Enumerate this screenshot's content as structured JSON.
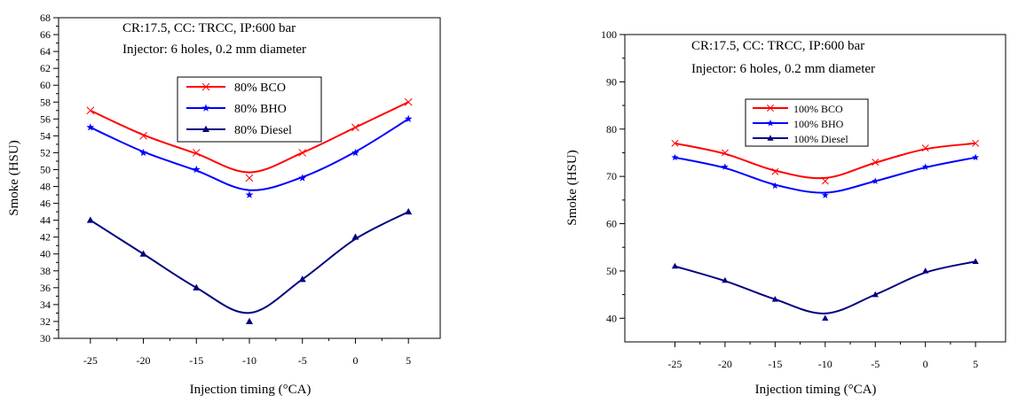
{
  "chart_data": [
    {
      "type": "line",
      "title": "",
      "annotation_lines": [
        "CR:17.5, CC: TRCC, IP:600 bar",
        "Injector: 6 holes, 0.2 mm diameter"
      ],
      "xlabel": "Injection timing (°CA)",
      "ylabel": "Smoke (HSU)",
      "x": [
        -25,
        -20,
        -15,
        -10,
        -5,
        0,
        5
      ],
      "xlim": [
        -28,
        8
      ],
      "ylim": [
        30,
        68
      ],
      "yticks": [
        30,
        32,
        34,
        36,
        38,
        40,
        42,
        44,
        46,
        48,
        50,
        52,
        54,
        56,
        58,
        60,
        62,
        64,
        66,
        68
      ],
      "xticks": [
        -25,
        -20,
        -15,
        -10,
        -5,
        0,
        5
      ],
      "legend_position": "upper-center",
      "series": [
        {
          "name": "80% BCO",
          "values": [
            57,
            54,
            52,
            49,
            52,
            55,
            58
          ],
          "color": "#ff0000",
          "marker": "x"
        },
        {
          "name": "80% BHO",
          "values": [
            55,
            52,
            50,
            47,
            49,
            52,
            56
          ],
          "color": "#0000ff",
          "marker": "star"
        },
        {
          "name": "80% Diesel",
          "values": [
            44,
            40,
            36,
            32,
            37,
            42,
            45
          ],
          "color": "#000080",
          "marker": "triangle"
        }
      ]
    },
    {
      "type": "line",
      "title": "",
      "annotation_lines": [
        "CR:17.5, CC: TRCC, IP:600 bar",
        "Injector: 6 holes, 0.2 mm diameter"
      ],
      "xlabel": "Injection timing (°CA)",
      "ylabel": "Smoke (HSU)",
      "x": [
        -25,
        -20,
        -15,
        -10,
        -5,
        0,
        5
      ],
      "xlim": [
        -30,
        8
      ],
      "ylim": [
        35,
        100
      ],
      "yticks": [
        40,
        50,
        60,
        70,
        80,
        90,
        100
      ],
      "xticks": [
        -25,
        -20,
        -15,
        -10,
        -5,
        0,
        5
      ],
      "legend_position": "upper-center",
      "series": [
        {
          "name": "100% BCO",
          "values": [
            77,
            75,
            71,
            69,
            73,
            76,
            77
          ],
          "color": "#ff0000",
          "marker": "x"
        },
        {
          "name": "100% BHO",
          "values": [
            74,
            72,
            68,
            66,
            69,
            72,
            74
          ],
          "color": "#0000ff",
          "marker": "star"
        },
        {
          "name": "100% Diesel",
          "values": [
            51,
            48,
            44,
            40,
            45,
            50,
            52
          ],
          "color": "#000080",
          "marker": "triangle"
        }
      ]
    }
  ]
}
